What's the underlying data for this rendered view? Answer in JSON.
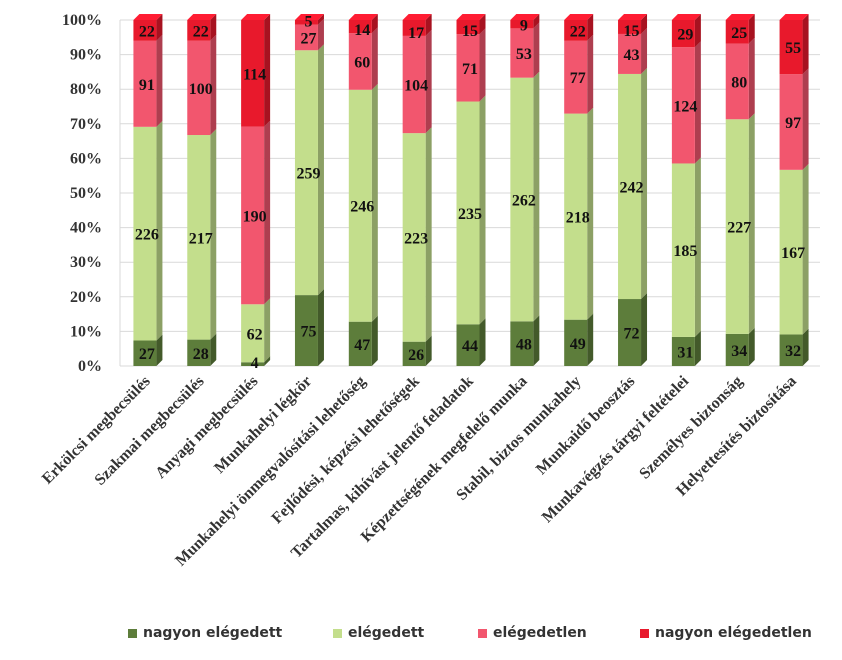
{
  "chart_data": {
    "type": "bar",
    "stacked": "percent",
    "categories": [
      "Erkölcsi megbecsülés",
      "Szakmai megbecsülés",
      "Anyagi megbecsülés",
      "Munkahelyi légkör",
      "Munkahelyi önmegvalósítási lehetőség",
      "Fejlődési, képzési lehetőségek",
      "Tartalmas, kihívást jelentő feladatok",
      "Képzettségének megfelelő munka",
      "Stabil, biztos munkahely",
      "Munkaidő beosztás",
      "Munkavégzés tárgyi feltételei",
      "Személyes biztonság",
      "Helyettesítés biztosítása"
    ],
    "series": [
      {
        "name": "nagyon elégedett",
        "color": "#5d7d3b",
        "values": [
          27,
          28,
          4,
          75,
          47,
          26,
          44,
          48,
          49,
          72,
          31,
          34,
          32
        ]
      },
      {
        "name": "elégedett",
        "color": "#c3de8c",
        "values": [
          226,
          217,
          62,
          259,
          246,
          223,
          235,
          262,
          218,
          242,
          185,
          227,
          167
        ]
      },
      {
        "name": "elégedetlen",
        "color": "#f2566e",
        "values": [
          91,
          100,
          190,
          27,
          60,
          104,
          71,
          53,
          77,
          43,
          124,
          80,
          97
        ]
      },
      {
        "name": "nagyon elégedetlen",
        "color": "#e8192c",
        "values": [
          22,
          22,
          114,
          5,
          14,
          17,
          15,
          9,
          22,
          15,
          29,
          25,
          55
        ]
      }
    ],
    "ylim": [
      0,
      100
    ],
    "yticks": [
      "0%",
      "10%",
      "20%",
      "30%",
      "40%",
      "50%",
      "60%",
      "70%",
      "80%",
      "90%",
      "100%"
    ],
    "grid": true,
    "legend_position": "bottom"
  }
}
